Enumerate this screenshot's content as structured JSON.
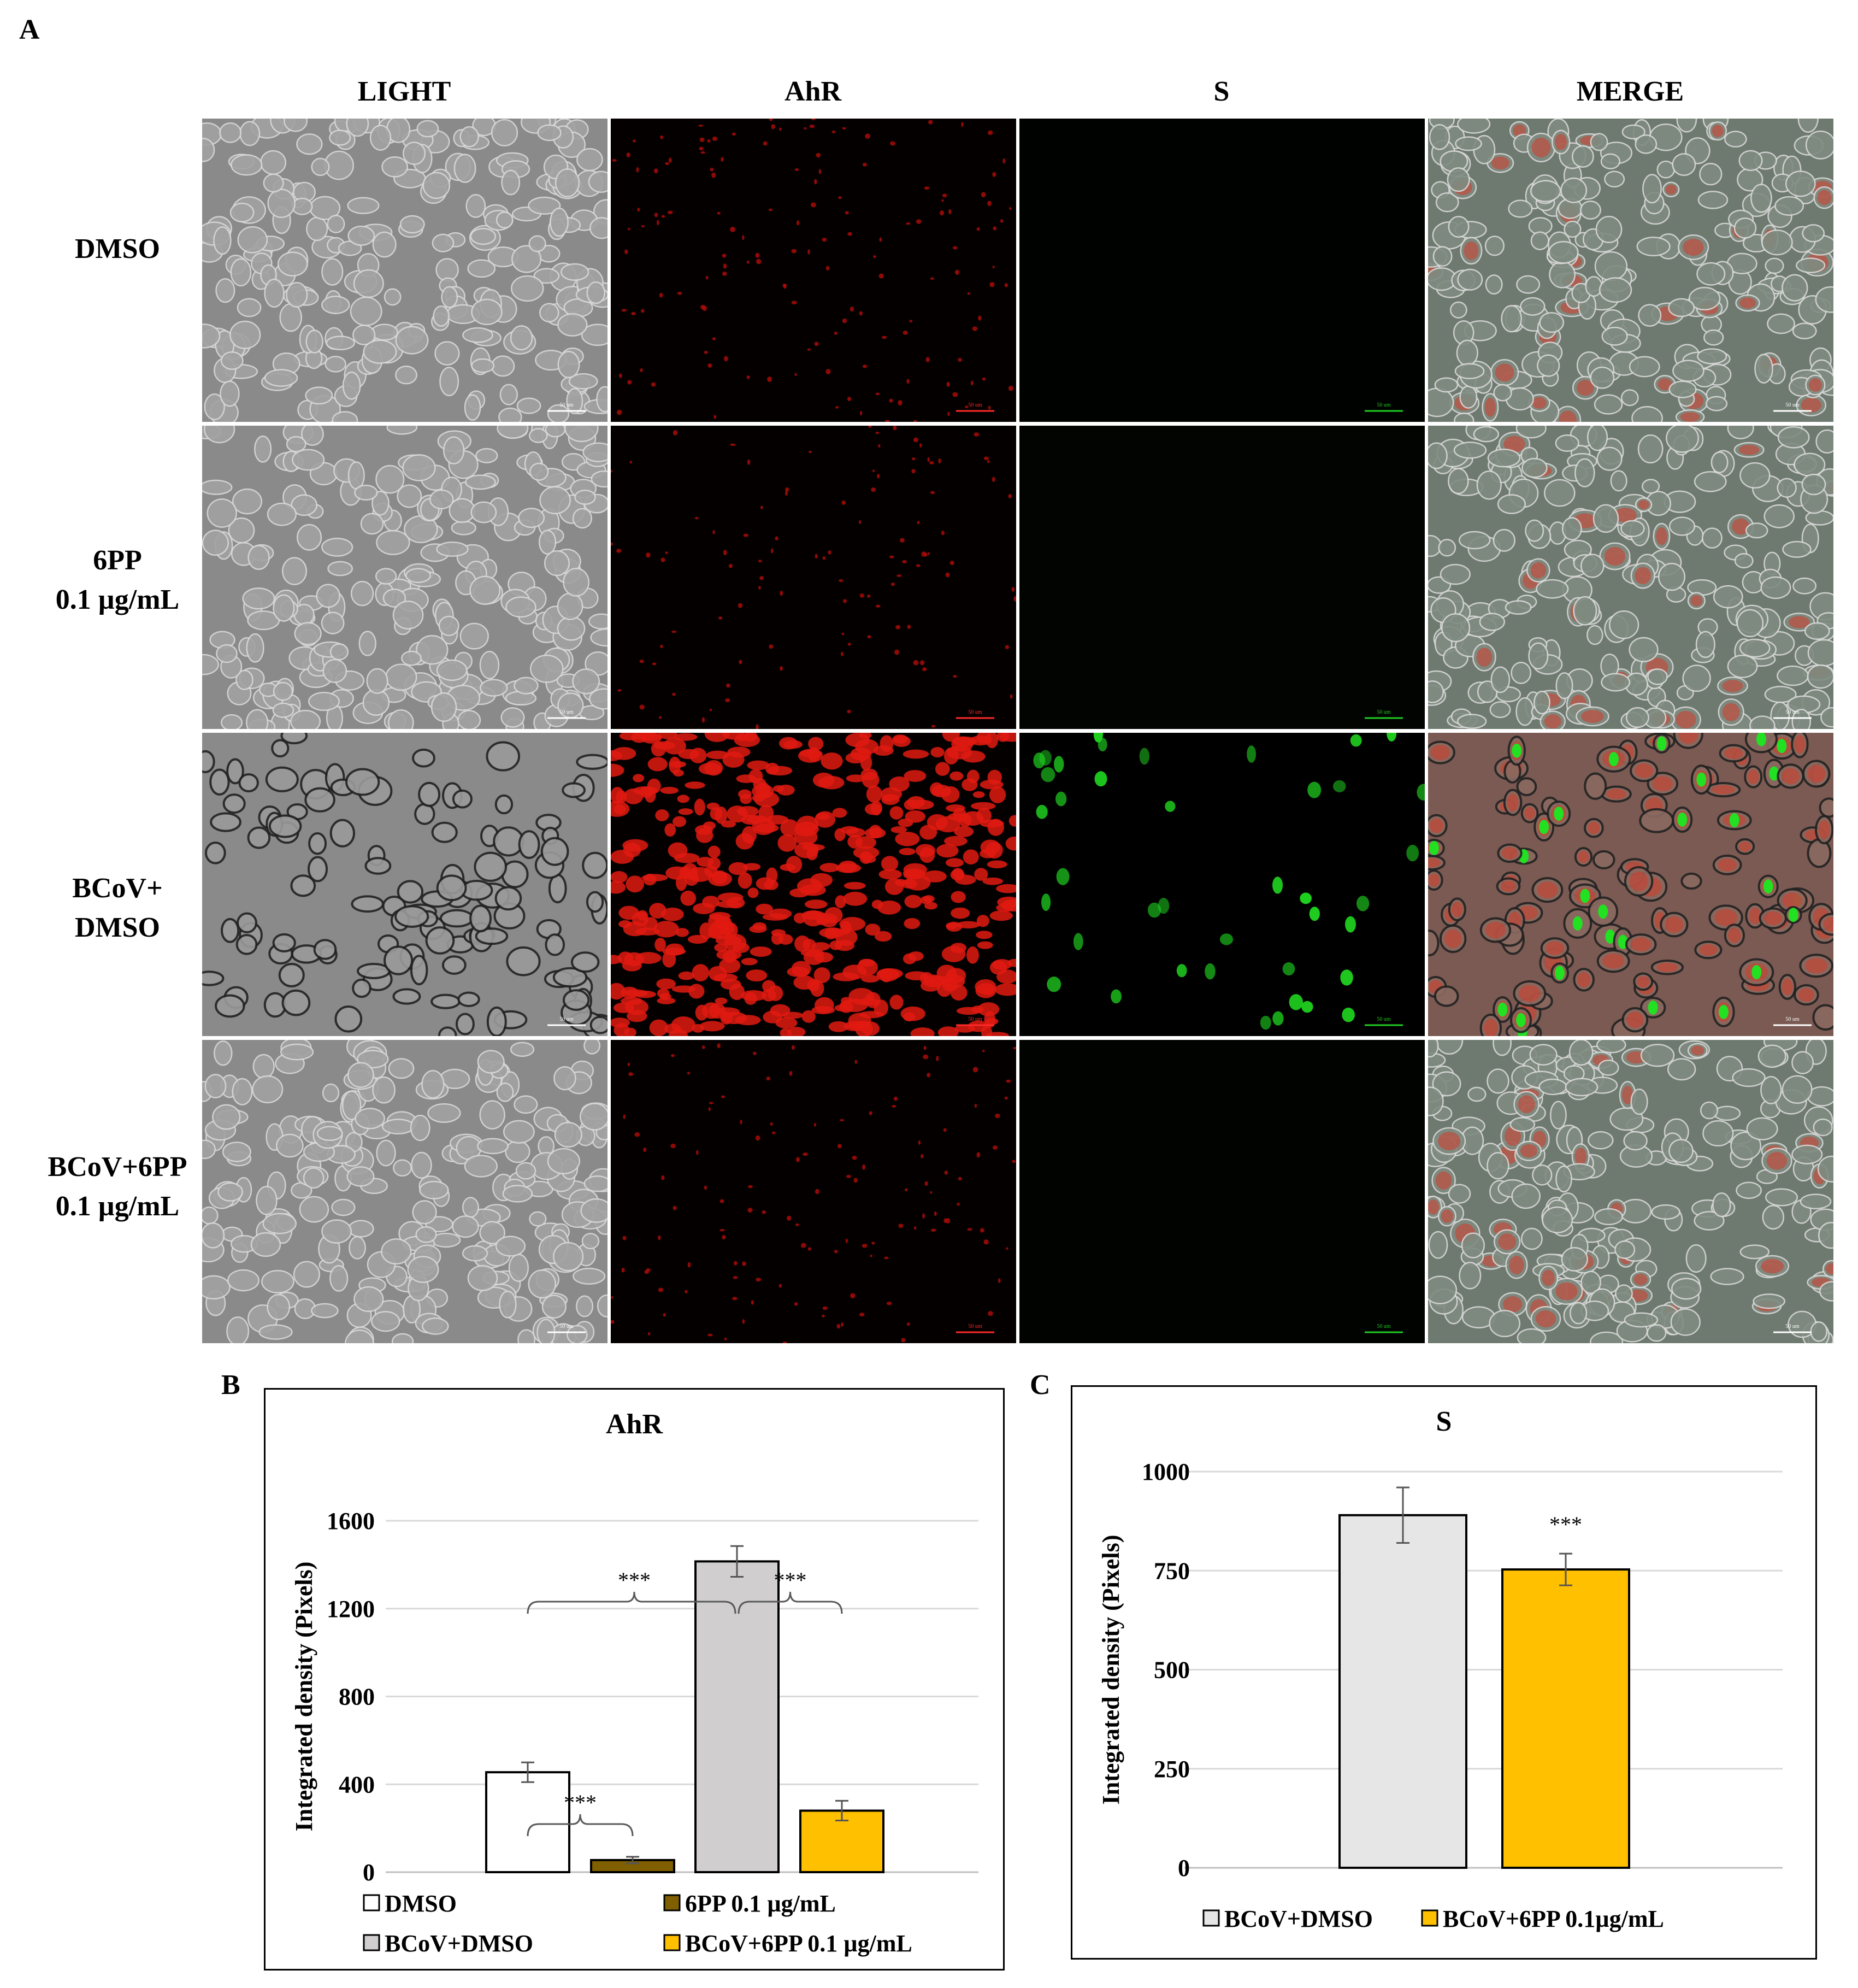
{
  "panel_a": {
    "letter": "A",
    "columns": [
      "LIGHT",
      "AhR",
      "S",
      "MERGE"
    ],
    "rows": [
      {
        "label_lines": [
          "DMSO"
        ]
      },
      {
        "label_lines": [
          "6PP",
          "0.1 µg/mL"
        ]
      },
      {
        "label_lines": [
          "BCoV+",
          "DMSO"
        ]
      },
      {
        "label_lines": [
          "BCoV+6PP",
          "0.1 µg/mL"
        ]
      }
    ],
    "scale_bar_label": "50 um"
  },
  "chart_data": [
    {
      "panel_letter": "B",
      "type": "bar",
      "title": "AhR",
      "xlabel": "",
      "ylabel": "Integrated density (Pixels)",
      "ylim": [
        0,
        1600
      ],
      "yticks": [
        0,
        400,
        800,
        1200,
        1600
      ],
      "grid": true,
      "legend_position": "bottom",
      "categories": [
        "DMSO",
        "6PP 0.1 µg/mL",
        "BCoV+DMSO",
        "BCoV+6PP 0.1 µg/mL"
      ],
      "values": [
        455,
        55,
        1415,
        280
      ],
      "errors": [
        45,
        15,
        70,
        45
      ],
      "colors": [
        "#ffffff",
        "#7f5f00",
        "#d0cece",
        "#ffc000"
      ],
      "significance": [
        {
          "from": 0,
          "to": 1,
          "label": "***"
        },
        {
          "from": 0,
          "to": 2,
          "label": "***"
        },
        {
          "from": 2,
          "to": 3,
          "label": "***"
        }
      ]
    },
    {
      "panel_letter": "C",
      "type": "bar",
      "title": "S",
      "xlabel": "",
      "ylabel": "Integrated density (Pixels)",
      "ylim": [
        0,
        1000
      ],
      "yticks": [
        0,
        250,
        500,
        750,
        1000
      ],
      "grid": true,
      "legend_position": "bottom",
      "categories": [
        "BCoV+DMSO",
        "BCoV+6PP 0.1µg/mL"
      ],
      "values": [
        890,
        753
      ],
      "errors": [
        70,
        40
      ],
      "colors": [
        "#e7e6e6",
        "#ffc000"
      ],
      "significance": [
        {
          "over": 1,
          "label": "***"
        }
      ]
    }
  ]
}
